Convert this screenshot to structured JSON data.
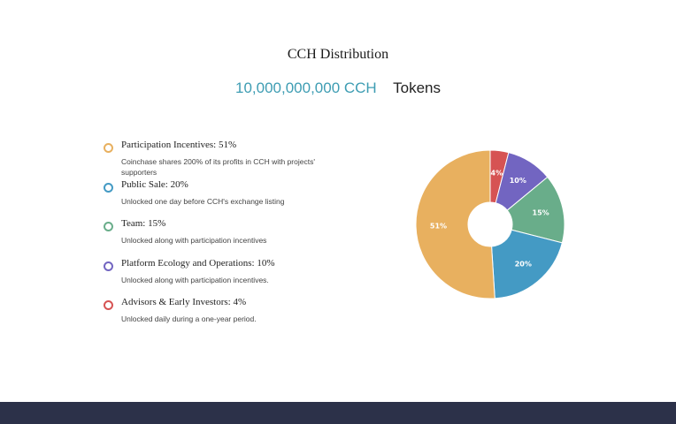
{
  "header": {
    "title": "CCH Distribution",
    "supply_amount": "10,000,000,000 CCH",
    "supply_unit": "Tokens"
  },
  "legend": [
    {
      "title": "Participation Incentives: 51%",
      "desc": "Coinchase shares 200% of its profits in CCH with projects' supporters",
      "color": "#e8b05f"
    },
    {
      "title": "Public Sale: 20%",
      "desc": "Unlocked one day before CCH's exchange listing",
      "color": "#449ac4"
    },
    {
      "title": "Team: 15%",
      "desc": "Unlocked along with participation incentives",
      "color": "#69ad8a"
    },
    {
      "title": "Platform Ecology and Operations: 10%",
      "desc": "Unlocked along with participation incentives.",
      "color": "#7265c1"
    },
    {
      "title": "Advisors & Early Investors: 4%",
      "desc": "Unlocked daily during a one-year period.",
      "color": "#d65353"
    }
  ],
  "chart_data": {
    "type": "pie",
    "title": "CCH Distribution",
    "categories": [
      "Advisors & Early Investors",
      "Platform Ecology and Operations",
      "Team",
      "Public Sale",
      "Participation Incentives"
    ],
    "values": [
      4,
      10,
      15,
      20,
      51
    ],
    "labels": [
      "4%",
      "10%",
      "15%",
      "20%",
      "51%"
    ],
    "colors": [
      "#d65353",
      "#7265c1",
      "#69ad8a",
      "#449ac4",
      "#e8b05f"
    ],
    "style": "donut, slices start at 12 o'clock clockwise"
  }
}
